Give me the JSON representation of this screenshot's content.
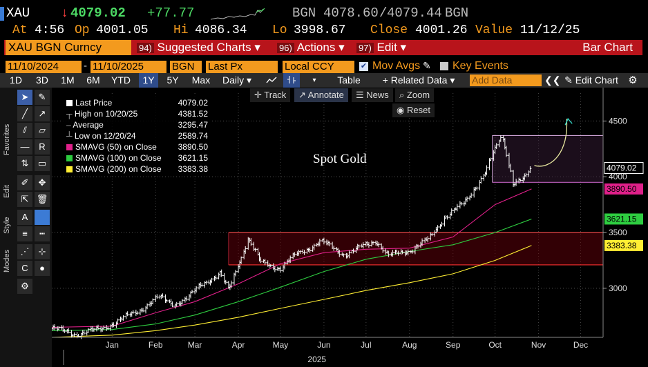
{
  "header": {
    "ticker": "XAU",
    "last_arrow": "↓",
    "last": "4079.02",
    "change": "+77.77",
    "bid_label": "BGN",
    "bid": "4078.60",
    "sep": "/",
    "ask": "4079.44",
    "ask_label": "BGN",
    "at_label": "At",
    "time": "4:56",
    "op_label": "Op",
    "open": "4001.05",
    "hi_label": "Hi",
    "high": "4086.34",
    "lo_label": "Lo",
    "low": "3998.67",
    "close_label": "Close",
    "close": "4001.26",
    "value_label": "Value",
    "value_date": "11/12/25"
  },
  "menubar": {
    "security": "XAU BGN Curncy",
    "suggested_num": "94)",
    "suggested": "Suggested Charts ▾",
    "actions_num": "96)",
    "actions": "Actions ▾",
    "edit_num": "97)",
    "edit": "Edit ▾",
    "chart_type": "Bar Chart"
  },
  "settings": {
    "start_date": "11/10/2024",
    "dash": "-",
    "end_date": "11/10/2025",
    "source": "BGN",
    "field": "Last Px",
    "currency": "Local CCY",
    "mov_avgs": "Mov Avgs",
    "key_events": "Key Events"
  },
  "toolbar": {
    "ranges": [
      "1D",
      "3D",
      "1M",
      "6M",
      "YTD",
      "1Y",
      "5Y",
      "Max"
    ],
    "selected_range": "1Y",
    "period": "Daily ▾",
    "table": "Table",
    "related": "+ Related Data ▾",
    "add_data_placeholder": "Add Data",
    "collapse": "❮❮",
    "edit_chart": "Edit Chart"
  },
  "left_panel": {
    "favorites": "Favorites",
    "edit": "Edit",
    "style": "Style",
    "modes": "Modes"
  },
  "chart_toolbar": {
    "track": "Track",
    "annotate": "Annotate",
    "news": "News",
    "zoom": "Zoom",
    "reset": "Reset"
  },
  "legend": {
    "rows": [
      {
        "label": "Last Price",
        "value": "4079.02",
        "color": "#ffffff"
      },
      {
        "label": "High on 10/20/25",
        "value": "4381.52",
        "color": "#ffffff"
      },
      {
        "label": "Average",
        "value": "3295.47",
        "color": "#ffffff"
      },
      {
        "label": "Low on 12/20/24",
        "value": "2589.74",
        "color": "#ffffff"
      },
      {
        "label": "SMAVG (50)  on Close",
        "value": "3890.50",
        "color": "#e0208a"
      },
      {
        "label": "SMAVG (100)  on Close",
        "value": "3621.15",
        "color": "#2ecc40"
      },
      {
        "label": "SMAVG (200)  on Close",
        "value": "3383.38",
        "color": "#ffee33"
      }
    ]
  },
  "annotation": "Spot Gold",
  "colors": {
    "price": "#ffffff",
    "sma50": "#e0208a",
    "sma100": "#2ecc40",
    "sma200": "#ffee33",
    "box_top": "#c9a0d0",
    "box_bottom": "#ff3030",
    "arrow": "#e8e8a0",
    "orange": "#f39a1e"
  },
  "chart_data": {
    "type": "bar",
    "x_range": [
      "2024-12-03",
      "2025-12-31"
    ],
    "ylim": [
      2560,
      4750
    ],
    "yticks": [
      3000,
      3500,
      4000,
      4500
    ],
    "xtick_labels": [
      "Jan",
      "Feb",
      "Mar",
      "Apr",
      "May",
      "Jun",
      "Jul",
      "Aug",
      "Sep",
      "Oct",
      "Nov",
      "Dec"
    ],
    "year_label": "2025",
    "price_tag": "4079.02",
    "sma_tags": [
      "3890.50",
      "3621.15",
      "3383.38"
    ],
    "grid": true,
    "series": [
      {
        "name": "Last Price",
        "points": [
          [
            "2024-12-03",
            2640
          ],
          [
            "2024-12-20",
            2590
          ],
          [
            "2025-01-06",
            2630
          ],
          [
            "2025-01-20",
            2710
          ],
          [
            "2025-02-03",
            2800
          ],
          [
            "2025-02-17",
            2920
          ],
          [
            "2025-02-28",
            2860
          ],
          [
            "2025-03-10",
            2910
          ],
          [
            "2025-03-20",
            3040
          ],
          [
            "2025-04-02",
            3130
          ],
          [
            "2025-04-08",
            2980
          ],
          [
            "2025-04-22",
            3450
          ],
          [
            "2025-05-01",
            3230
          ],
          [
            "2025-05-15",
            3180
          ],
          [
            "2025-05-26",
            3300
          ],
          [
            "2025-06-13",
            3420
          ],
          [
            "2025-06-30",
            3300
          ],
          [
            "2025-07-22",
            3430
          ],
          [
            "2025-07-31",
            3290
          ],
          [
            "2025-08-15",
            3340
          ],
          [
            "2025-08-29",
            3440
          ],
          [
            "2025-09-09",
            3640
          ],
          [
            "2025-09-23",
            3760
          ],
          [
            "2025-10-08",
            4040
          ],
          [
            "2025-10-20",
            4381
          ],
          [
            "2025-10-28",
            3950
          ],
          [
            "2025-11-05",
            3980
          ],
          [
            "2025-11-10",
            4079
          ]
        ]
      },
      {
        "name": "SMAVG (50)  on Close",
        "points": [
          [
            "2024-12-03",
            2650
          ],
          [
            "2025-01-15",
            2660
          ],
          [
            "2025-02-15",
            2780
          ],
          [
            "2025-03-15",
            2880
          ],
          [
            "2025-04-15",
            3040
          ],
          [
            "2025-05-15",
            3220
          ],
          [
            "2025-06-15",
            3320
          ],
          [
            "2025-07-15",
            3350
          ],
          [
            "2025-08-15",
            3360
          ],
          [
            "2025-09-15",
            3460
          ],
          [
            "2025-10-15",
            3750
          ],
          [
            "2025-11-10",
            3890.5
          ]
        ]
      },
      {
        "name": "SMAVG (100)  on Close",
        "points": [
          [
            "2024-12-03",
            2620
          ],
          [
            "2025-01-15",
            2630
          ],
          [
            "2025-02-15",
            2680
          ],
          [
            "2025-03-15",
            2760
          ],
          [
            "2025-04-15",
            2880
          ],
          [
            "2025-05-15",
            3010
          ],
          [
            "2025-06-15",
            3150
          ],
          [
            "2025-07-15",
            3260
          ],
          [
            "2025-08-15",
            3330
          ],
          [
            "2025-09-15",
            3390
          ],
          [
            "2025-10-15",
            3500
          ],
          [
            "2025-11-10",
            3621.15
          ]
        ]
      },
      {
        "name": "SMAVG (200)  on Close",
        "points": [
          [
            "2024-12-03",
            2560
          ],
          [
            "2025-01-15",
            2580
          ],
          [
            "2025-02-15",
            2620
          ],
          [
            "2025-03-15",
            2670
          ],
          [
            "2025-04-15",
            2740
          ],
          [
            "2025-05-15",
            2820
          ],
          [
            "2025-06-15",
            2900
          ],
          [
            "2025-07-15",
            2980
          ],
          [
            "2025-08-15",
            3050
          ],
          [
            "2025-09-15",
            3130
          ],
          [
            "2025-10-15",
            3250
          ],
          [
            "2025-11-10",
            3383.38
          ]
        ]
      }
    ],
    "shaded_ranges": [
      {
        "x": [
          "2025-04-08",
          "2025-12-31"
        ],
        "y": [
          3210,
          3500
        ],
        "color": "#ff3030"
      },
      {
        "x": [
          "2025-10-13",
          "2025-12-31"
        ],
        "y": [
          3950,
          4370
        ],
        "color": "#c9a0d0"
      }
    ]
  }
}
